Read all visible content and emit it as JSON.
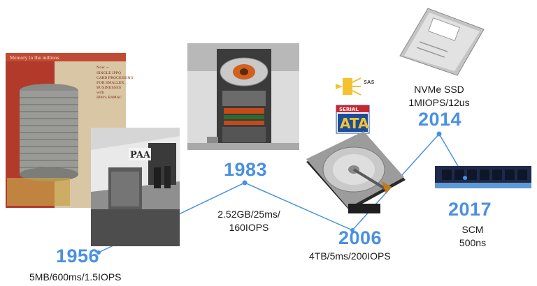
{
  "colors": {
    "accent": "#4a90e2",
    "text": "#1a1a1a",
    "background": "#ffffff"
  },
  "timeline": [
    {
      "year": "1956",
      "spec": "5MB/600ms/1.5IOPS"
    },
    {
      "year": "1983",
      "spec_lines": [
        "2.52GB/25ms/",
        "160IOPS"
      ]
    },
    {
      "year": "2006",
      "spec": "4TB/5ms/200IOPS"
    },
    {
      "year": "2014",
      "spec_lines": [
        "NVMe SSD",
        "1MIOPS/12us"
      ]
    },
    {
      "year": "2017",
      "spec_lines": [
        "SCM",
        "500ns"
      ]
    }
  ],
  "images": {
    "ramac_ad": {
      "header": "Memory to the millions",
      "side_text": [
        "Now —",
        "SINGLE IPPQ",
        "CARD PROCESSING",
        "FOR SMALLER",
        "BUSINESSES",
        "with",
        "IBM's RAMAC"
      ]
    },
    "ramac_plane": {
      "plane_text": "PAA"
    },
    "sas_logo": {
      "text": "SAS"
    },
    "sata_logo": {
      "line1": "SERIAL",
      "line2": "ATA"
    }
  }
}
